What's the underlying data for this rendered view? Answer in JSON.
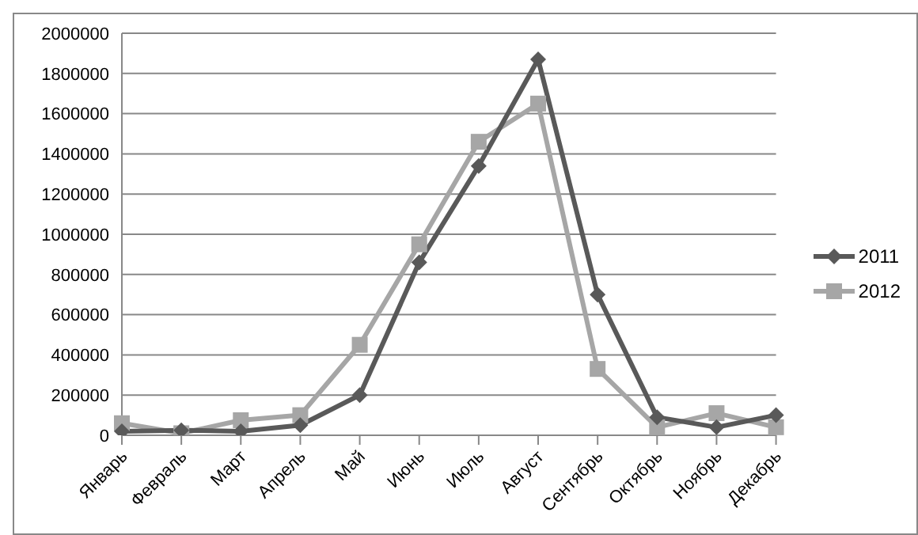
{
  "chart_data": {
    "type": "line",
    "categories": [
      "Январь",
      "Февраль",
      "Март",
      "Апрель",
      "Май",
      "Июнь",
      "Июль",
      "Август",
      "Сентябрь",
      "Октябрь",
      "Ноябрь",
      "Декабрь"
    ],
    "series": [
      {
        "name": "2011",
        "color": "#595959",
        "marker": "diamond",
        "values": [
          20000,
          25000,
          20000,
          50000,
          200000,
          860000,
          1340000,
          1870000,
          700000,
          90000,
          40000,
          100000
        ]
      },
      {
        "name": "2012",
        "color": "#a6a6a6",
        "marker": "square",
        "values": [
          60000,
          10000,
          75000,
          100000,
          450000,
          950000,
          1460000,
          1650000,
          330000,
          40000,
          110000,
          40000
        ]
      }
    ],
    "ylim": [
      0,
      2000000
    ],
    "yticks": [
      0,
      200000,
      400000,
      600000,
      800000,
      1000000,
      1200000,
      1400000,
      1600000,
      1800000,
      2000000
    ],
    "grid": "y",
    "legend": "right"
  }
}
